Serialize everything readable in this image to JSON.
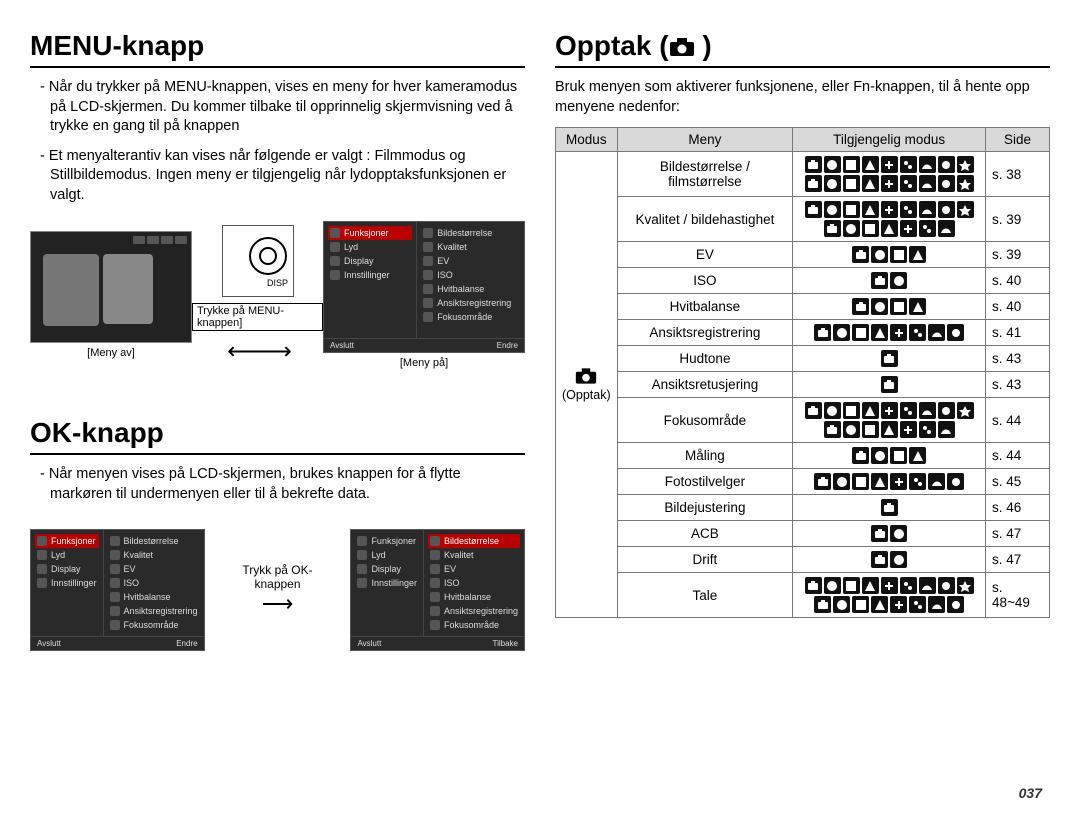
{
  "page_number": "037",
  "left": {
    "section1": {
      "title": "MENU-knapp",
      "para1": "- Når du trykker på MENU-knappen, vises en meny for hver kameramodus på LCD-skjermen. Du kommer tilbake til opprinnelig skjermvisning ved å trykke en gang til på knappen",
      "para2": "- Et menyalterantiv kan vises når følgende er valgt : Filmmodus og Stillbildemodus. Ingen meny er tilgjengelig når lydopptaksfunksjonen er valgt.",
      "caption_left": "[Meny av]",
      "caption_mid": "Trykke på MENU-knappen]",
      "caption_right": "[Meny på]"
    },
    "section2": {
      "title": "OK-knapp",
      "para1": "- Når menyen vises på LCD-skjermen, brukes knappen for å flytte markøren til undermenyen eller til å bekrefte data.",
      "mid_label": "Trykk på OK-knappen"
    },
    "menu_left": {
      "items": [
        "Funksjoner",
        "Lyd",
        "Display",
        "Innstillinger"
      ],
      "foot_l": "Avslutt",
      "foot_r": "Endre"
    },
    "menu_right": {
      "items": [
        "Bildestørrelse",
        "Kvalitet",
        "EV",
        "ISO",
        "Hvitbalanse",
        "Ansiktsregistrering",
        "Fokusområde"
      ]
    },
    "menu_ok_right": {
      "foot_l": "Avslutt",
      "foot_r": "Tilbake"
    }
  },
  "right": {
    "title": "Opptak (",
    "title_tail": " )",
    "intro": "Bruk menyen som aktiverer funksjonene, eller Fn-knappen, til å hente opp menyene nedenfor:",
    "opptak_label": "(Opptak)",
    "headers": {
      "modus": "Modus",
      "meny": "Meny",
      "tilg": "Tilgjengelig modus",
      "side": "Side"
    },
    "rows": [
      {
        "meny": "Bildestørrelse / filmstørrelse",
        "icons": 18,
        "side": "s. 38"
      },
      {
        "meny": "Kvalitet / bildehastighet",
        "icons": 16,
        "side": "s. 39"
      },
      {
        "meny": "EV",
        "icons": 4,
        "side": "s. 39"
      },
      {
        "meny": "ISO",
        "icons": 2,
        "side": "s. 40"
      },
      {
        "meny": "Hvitbalanse",
        "icons": 4,
        "side": "s. 40"
      },
      {
        "meny": "Ansiktsregistrering",
        "icons": 8,
        "side": "s. 41"
      },
      {
        "meny": "Hudtone",
        "icons": 1,
        "side": "s. 43"
      },
      {
        "meny": "Ansiktsretusjering",
        "icons": 1,
        "side": "s. 43"
      },
      {
        "meny": "Fokusområde",
        "icons": 16,
        "side": "s. 44"
      },
      {
        "meny": "Måling",
        "icons": 4,
        "side": "s. 44"
      },
      {
        "meny": "Fotostilvelger",
        "icons": 8,
        "side": "s. 45"
      },
      {
        "meny": "Bildejustering",
        "icons": 1,
        "side": "s. 46"
      },
      {
        "meny": "ACB",
        "icons": 2,
        "side": "s. 47"
      },
      {
        "meny": "Drift",
        "icons": 2,
        "side": "s. 47"
      },
      {
        "meny": "Tale",
        "icons": 17,
        "side": "s. 48~49"
      }
    ]
  },
  "colors": {
    "header_bg": "#d9d9d9",
    "border": "#777777",
    "icon_bg": "#111111",
    "icon_fg": "#ffffff",
    "menu_bg": "#2a2a2a",
    "menu_sel": "#b00000"
  }
}
